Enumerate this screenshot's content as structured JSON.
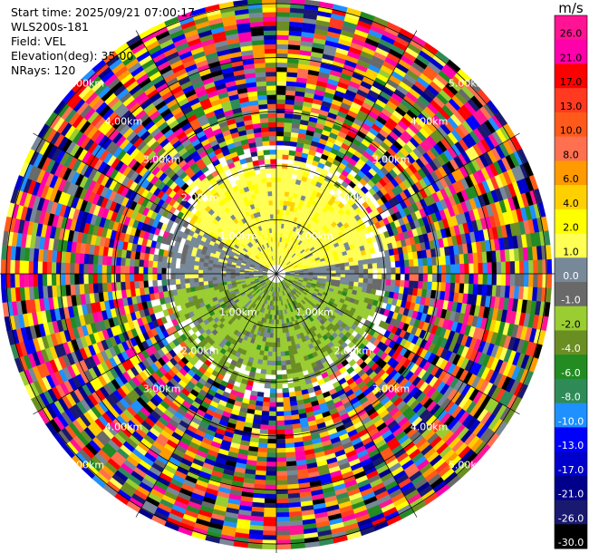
{
  "info": {
    "start_time": "Start time: 2025/09/21 07:00:17",
    "instrument": "WLS200s-181",
    "field": "Field: VEL",
    "elevation": "Elevation(deg): 35.00",
    "nrays": "NRays: 120"
  },
  "colorbar": {
    "unit": "m/s",
    "bins": [
      {
        "label": "26.0",
        "color": "#ff1493"
      },
      {
        "label": "21.0",
        "color": "#ff00aa"
      },
      {
        "label": "17.0",
        "color": "#ff0000"
      },
      {
        "label": "13.0",
        "color": "#ff3a20"
      },
      {
        "label": "10.0",
        "color": "#ff5a1a"
      },
      {
        "label": "8.0",
        "color": "#ff7050"
      },
      {
        "label": "6.0",
        "color": "#ff9a00"
      },
      {
        "label": "4.0",
        "color": "#ffd000"
      },
      {
        "label": "2.0",
        "color": "#ffff00"
      },
      {
        "label": "1.0",
        "color": "#ffff55"
      },
      {
        "label": "0.0",
        "color": "#778899"
      },
      {
        "label": "-1.0",
        "color": "#696969"
      },
      {
        "label": "-2.0",
        "color": "#9acd32"
      },
      {
        "label": "-4.0",
        "color": "#6b8e23"
      },
      {
        "label": "-6.0",
        "color": "#228b22"
      },
      {
        "label": "-8.0",
        "color": "#2e8b57"
      },
      {
        "label": "-10.0",
        "color": "#1e90ff"
      },
      {
        "label": "-13.0",
        "color": "#0000ff"
      },
      {
        "label": "-17.0",
        "color": "#0000cd"
      },
      {
        "label": "-21.0",
        "color": "#00008b"
      },
      {
        "label": "-26.0",
        "color": "#191970"
      },
      {
        "label": "-30.0",
        "color": "#000000"
      }
    ]
  },
  "chart_data": {
    "type": "heatmap",
    "field": "VEL",
    "unit": "m/s",
    "range_rings_km": [
      1.0,
      2.0,
      3.0,
      4.0,
      5.0
    ],
    "ring_labels": [
      "1.00km",
      "2.00km",
      "3.00km",
      "4.00km",
      "5.00km"
    ],
    "max_range_km": 5.1,
    "n_rays": 120,
    "elevation_deg": 35.0,
    "color_scale": {
      "min": -30.0,
      "max": 26.0
    },
    "clear_air_region": {
      "max_range_km": 2.1,
      "positive_sector_deg": [
        300,
        80
      ],
      "negative_sector_deg": [
        100,
        260
      ]
    }
  }
}
